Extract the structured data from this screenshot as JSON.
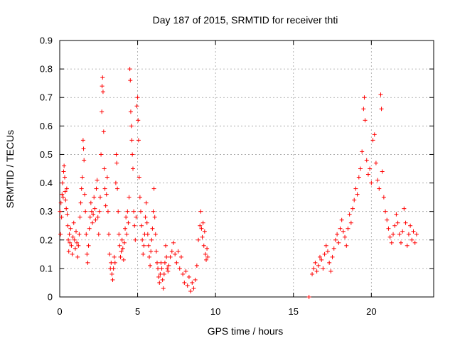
{
  "chart_data": {
    "type": "scatter",
    "title": "Day 187 of 2015, SRMTID for receiver thti",
    "xlabel": "GPS time / hours",
    "ylabel": "SRMTID / TECUs",
    "xlim": [
      0,
      24
    ],
    "ylim": [
      0,
      0.9
    ],
    "xticks": [
      0,
      5,
      10,
      15,
      20
    ],
    "yticks": [
      0,
      0.1,
      0.2,
      0.3,
      0.4,
      0.5,
      0.6,
      0.7,
      0.8,
      0.9
    ],
    "xtick_labels": [
      "0",
      "5",
      "10",
      "15",
      "20"
    ],
    "ytick_labels": [
      "0",
      "0.1",
      "0.2",
      "0.3",
      "0.4",
      "0.5",
      "0.6",
      "0.7",
      "0.8",
      "0.9"
    ],
    "grid": true,
    "marker": "+",
    "color": "#ff0000",
    "series": [
      {
        "name": "SRMTID",
        "points": [
          [
            0.02,
            0.3
          ],
          [
            0.05,
            0.22
          ],
          [
            0.08,
            0.33
          ],
          [
            0.12,
            0.28
          ],
          [
            0.15,
            0.36
          ],
          [
            0.18,
            0.4
          ],
          [
            0.22,
            0.35
          ],
          [
            0.25,
            0.44
          ],
          [
            0.28,
            0.46
          ],
          [
            0.32,
            0.42
          ],
          [
            0.35,
            0.37
          ],
          [
            0.38,
            0.34
          ],
          [
            0.42,
            0.31
          ],
          [
            0.45,
            0.38
          ],
          [
            0.48,
            0.29
          ],
          [
            0.52,
            0.25
          ],
          [
            0.55,
            0.2
          ],
          [
            0.58,
            0.16
          ],
          [
            0.62,
            0.22
          ],
          [
            0.65,
            0.19
          ],
          [
            0.7,
            0.24
          ],
          [
            0.75,
            0.18
          ],
          [
            0.8,
            0.15
          ],
          [
            0.85,
            0.21
          ],
          [
            0.9,
            0.26
          ],
          [
            0.95,
            0.2
          ],
          [
            1.0,
            0.17
          ],
          [
            1.05,
            0.23
          ],
          [
            1.1,
            0.19
          ],
          [
            1.15,
            0.14
          ],
          [
            1.2,
            0.18
          ],
          [
            1.25,
            0.22
          ],
          [
            1.3,
            0.28
          ],
          [
            1.35,
            0.33
          ],
          [
            1.4,
            0.38
          ],
          [
            1.45,
            0.42
          ],
          [
            1.5,
            0.55
          ],
          [
            1.53,
            0.52
          ],
          [
            1.56,
            0.48
          ],
          [
            1.6,
            0.36
          ],
          [
            1.65,
            0.3
          ],
          [
            1.7,
            0.22
          ],
          [
            1.75,
            0.15
          ],
          [
            1.8,
            0.12
          ],
          [
            1.85,
            0.18
          ],
          [
            1.9,
            0.24
          ],
          [
            1.95,
            0.28
          ],
          [
            2.0,
            0.33
          ],
          [
            2.05,
            0.3
          ],
          [
            2.1,
            0.26
          ],
          [
            2.15,
            0.29
          ],
          [
            2.2,
            0.35
          ],
          [
            2.25,
            0.31
          ],
          [
            2.3,
            0.27
          ],
          [
            2.35,
            0.38
          ],
          [
            2.4,
            0.41
          ],
          [
            2.45,
            0.28
          ],
          [
            2.5,
            0.22
          ],
          [
            2.55,
            0.3
          ],
          [
            2.6,
            0.35
          ],
          [
            2.65,
            0.5
          ],
          [
            2.7,
            0.65
          ],
          [
            2.72,
            0.74
          ],
          [
            2.75,
            0.77
          ],
          [
            2.78,
            0.72
          ],
          [
            2.82,
            0.58
          ],
          [
            2.86,
            0.45
          ],
          [
            2.9,
            0.38
          ],
          [
            2.95,
            0.32
          ],
          [
            3.0,
            0.36
          ],
          [
            3.05,
            0.42
          ],
          [
            3.1,
            0.3
          ],
          [
            3.15,
            0.22
          ],
          [
            3.2,
            0.15
          ],
          [
            3.25,
            0.1
          ],
          [
            3.3,
            0.12
          ],
          [
            3.35,
            0.08
          ],
          [
            3.4,
            0.06
          ],
          [
            3.45,
            0.1
          ],
          [
            3.5,
            0.14
          ],
          [
            3.55,
            0.12
          ],
          [
            3.6,
            0.4
          ],
          [
            3.63,
            0.5
          ],
          [
            3.66,
            0.47
          ],
          [
            3.7,
            0.38
          ],
          [
            3.75,
            0.3
          ],
          [
            3.8,
            0.22
          ],
          [
            3.85,
            0.18
          ],
          [
            3.9,
            0.14
          ],
          [
            3.95,
            0.16
          ],
          [
            4.0,
            0.2
          ],
          [
            4.05,
            0.17
          ],
          [
            4.1,
            0.13
          ],
          [
            4.15,
            0.19
          ],
          [
            4.2,
            0.24
          ],
          [
            4.25,
            0.28
          ],
          [
            4.3,
            0.22
          ],
          [
            4.35,
            0.3
          ],
          [
            4.4,
            0.26
          ],
          [
            4.45,
            0.35
          ],
          [
            4.5,
            0.8
          ],
          [
            4.53,
            0.76
          ],
          [
            4.56,
            0.65
          ],
          [
            4.6,
            0.6
          ],
          [
            4.63,
            0.55
          ],
          [
            4.66,
            0.5
          ],
          [
            4.7,
            0.45
          ],
          [
            4.75,
            0.3
          ],
          [
            4.8,
            0.25
          ],
          [
            4.85,
            0.2
          ],
          [
            4.9,
            0.28
          ],
          [
            4.95,
            0.67
          ],
          [
            5.0,
            0.7
          ],
          [
            5.03,
            0.62
          ],
          [
            5.06,
            0.55
          ],
          [
            5.1,
            0.42
          ],
          [
            5.15,
            0.35
          ],
          [
            5.2,
            0.3
          ],
          [
            5.25,
            0.25
          ],
          [
            5.3,
            0.2
          ],
          [
            5.35,
            0.15
          ],
          [
            5.4,
            0.18
          ],
          [
            5.45,
            0.22
          ],
          [
            5.5,
            0.28
          ],
          [
            5.55,
            0.33
          ],
          [
            5.6,
            0.26
          ],
          [
            5.65,
            0.22
          ],
          [
            5.7,
            0.18
          ],
          [
            5.75,
            0.14
          ],
          [
            5.8,
            0.11
          ],
          [
            5.85,
            0.16
          ],
          [
            5.9,
            0.2
          ],
          [
            5.95,
            0.24
          ],
          [
            6.0,
            0.3
          ],
          [
            6.05,
            0.38
          ],
          [
            6.1,
            0.28
          ],
          [
            6.15,
            0.22
          ],
          [
            6.2,
            0.16
          ],
          [
            6.25,
            0.12
          ],
          [
            6.3,
            0.1
          ],
          [
            6.35,
            0.07
          ],
          [
            6.4,
            0.05
          ],
          [
            6.45,
            0.08
          ],
          [
            6.5,
            0.12
          ],
          [
            6.55,
            0.1
          ],
          [
            6.6,
            0.06
          ],
          [
            6.65,
            0.03
          ],
          [
            6.7,
            0.08
          ],
          [
            6.75,
            0.12
          ],
          [
            6.8,
            0.18
          ],
          [
            6.85,
            0.14
          ],
          [
            6.9,
            0.1
          ],
          [
            6.95,
            0.09
          ],
          [
            7.0,
            0.11
          ],
          [
            7.1,
            0.14
          ],
          [
            7.2,
            0.16
          ],
          [
            7.3,
            0.19
          ],
          [
            7.4,
            0.15
          ],
          [
            7.5,
            0.12
          ],
          [
            7.6,
            0.16
          ],
          [
            7.7,
            0.1
          ],
          [
            7.8,
            0.14
          ],
          [
            7.9,
            0.08
          ],
          [
            8.0,
            0.05
          ],
          [
            8.1,
            0.09
          ],
          [
            8.2,
            0.04
          ],
          [
            8.3,
            0.07
          ],
          [
            8.4,
            0.02
          ],
          [
            8.5,
            0.05
          ],
          [
            8.6,
            0.03
          ],
          [
            8.7,
            0.06
          ],
          [
            8.8,
            0.11
          ],
          [
            8.9,
            0.2
          ],
          [
            9.0,
            0.25
          ],
          [
            9.05,
            0.3
          ],
          [
            9.1,
            0.24
          ],
          [
            9.15,
            0.21
          ],
          [
            9.2,
            0.26
          ],
          [
            9.25,
            0.18
          ],
          [
            9.3,
            0.23
          ],
          [
            9.35,
            0.15
          ],
          [
            9.4,
            0.13
          ],
          [
            9.45,
            0.17
          ],
          [
            9.5,
            0.14
          ],
          [
            16.0,
            0.0
          ],
          [
            16.2,
            0.08
          ],
          [
            16.3,
            0.1
          ],
          [
            16.4,
            0.12
          ],
          [
            16.5,
            0.09
          ],
          [
            16.6,
            0.11
          ],
          [
            16.7,
            0.14
          ],
          [
            16.8,
            0.13
          ],
          [
            16.9,
            0.1
          ],
          [
            17.0,
            0.15
          ],
          [
            17.1,
            0.18
          ],
          [
            17.2,
            0.16
          ],
          [
            17.3,
            0.12
          ],
          [
            17.4,
            0.09
          ],
          [
            17.5,
            0.14
          ],
          [
            17.6,
            0.17
          ],
          [
            17.7,
            0.2
          ],
          [
            17.8,
            0.22
          ],
          [
            17.9,
            0.19
          ],
          [
            18.0,
            0.24
          ],
          [
            18.1,
            0.27
          ],
          [
            18.2,
            0.23
          ],
          [
            18.3,
            0.21
          ],
          [
            18.4,
            0.18
          ],
          [
            18.5,
            0.24
          ],
          [
            18.6,
            0.29
          ],
          [
            18.7,
            0.26
          ],
          [
            18.8,
            0.31
          ],
          [
            18.9,
            0.34
          ],
          [
            19.0,
            0.38
          ],
          [
            19.1,
            0.36
          ],
          [
            19.2,
            0.42
          ],
          [
            19.3,
            0.45
          ],
          [
            19.4,
            0.51
          ],
          [
            19.5,
            0.66
          ],
          [
            19.55,
            0.7
          ],
          [
            19.6,
            0.62
          ],
          [
            19.7,
            0.48
          ],
          [
            19.8,
            0.43
          ],
          [
            19.9,
            0.45
          ],
          [
            20.0,
            0.4
          ],
          [
            20.1,
            0.55
          ],
          [
            20.2,
            0.57
          ],
          [
            20.3,
            0.47
          ],
          [
            20.4,
            0.41
          ],
          [
            20.5,
            0.38
          ],
          [
            20.6,
            0.71
          ],
          [
            20.65,
            0.66
          ],
          [
            20.7,
            0.44
          ],
          [
            20.8,
            0.35
          ],
          [
            20.9,
            0.3
          ],
          [
            21.0,
            0.27
          ],
          [
            21.1,
            0.24
          ],
          [
            21.2,
            0.21
          ],
          [
            21.3,
            0.19
          ],
          [
            21.4,
            0.22
          ],
          [
            21.5,
            0.25
          ],
          [
            21.6,
            0.29
          ],
          [
            21.7,
            0.26
          ],
          [
            21.8,
            0.22
          ],
          [
            21.9,
            0.19
          ],
          [
            22.0,
            0.23
          ],
          [
            22.1,
            0.31
          ],
          [
            22.2,
            0.26
          ],
          [
            22.3,
            0.18
          ],
          [
            22.4,
            0.22
          ],
          [
            22.5,
            0.25
          ],
          [
            22.6,
            0.2
          ],
          [
            22.7,
            0.23
          ],
          [
            22.8,
            0.19
          ],
          [
            22.9,
            0.22
          ]
        ]
      }
    ]
  }
}
